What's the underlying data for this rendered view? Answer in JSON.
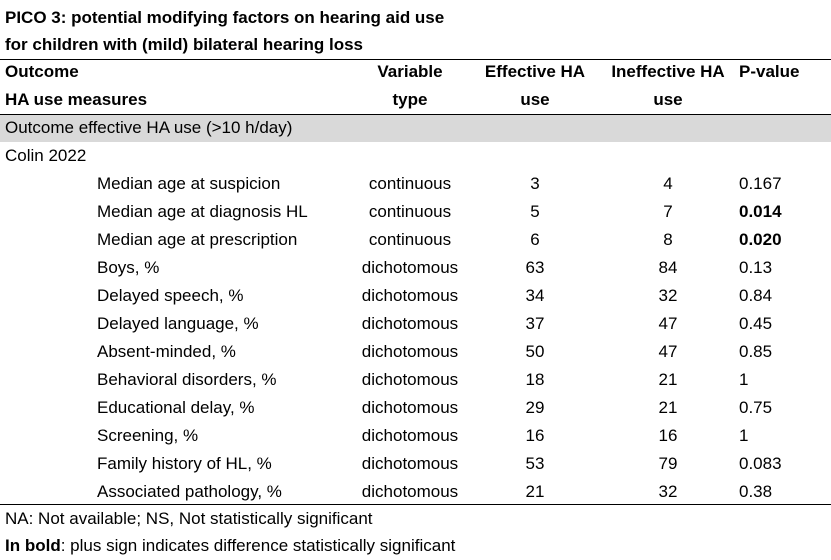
{
  "title": {
    "line1": "PICO 3: potential modifying factors on hearing aid use",
    "line2": "for children with (mild) bilateral hearing loss"
  },
  "header": {
    "outcome_l1": "Outcome",
    "outcome_l2": "HA use measures",
    "variable_l1": "Variable",
    "variable_l2": "type",
    "effective_l1": "Effective HA",
    "effective_l2": "use",
    "ineffective_l1": "Ineffective HA",
    "ineffective_l2": "use",
    "pvalue": "P-value"
  },
  "section": "Outcome effective HA use (>10 h/day)",
  "study": "Colin 2022",
  "rows": [
    {
      "label": "Median age at suspicion",
      "type": "continuous",
      "effective": "3",
      "ineffective": "4",
      "p": "0.167",
      "bold": false
    },
    {
      "label": "Median age at diagnosis HL",
      "type": "continuous",
      "effective": "5",
      "ineffective": "7",
      "p": "0.014",
      "bold": true
    },
    {
      "label": "Median age at prescription",
      "type": "continuous",
      "effective": "6",
      "ineffective": "8",
      "p": "0.020",
      "bold": true
    },
    {
      "label": "Boys, %",
      "type": "dichotomous",
      "effective": "63",
      "ineffective": "84",
      "p": "0.13",
      "bold": false
    },
    {
      "label": "Delayed speech, %",
      "type": "dichotomous",
      "effective": "34",
      "ineffective": "32",
      "p": "0.84",
      "bold": false
    },
    {
      "label": "Delayed language, %",
      "type": "dichotomous",
      "effective": "37",
      "ineffective": "47",
      "p": "0.45",
      "bold": false
    },
    {
      "label": "Absent-minded, %",
      "type": "dichotomous",
      "effective": "50",
      "ineffective": "47",
      "p": "0.85",
      "bold": false
    },
    {
      "label": "Behavioral disorders, %",
      "type": "dichotomous",
      "effective": "18",
      "ineffective": "21",
      "p": "1",
      "bold": false
    },
    {
      "label": "Educational delay, %",
      "type": "dichotomous",
      "effective": "29",
      "ineffective": "21",
      "p": "0.75",
      "bold": false
    },
    {
      "label": "Screening, %",
      "type": "dichotomous",
      "effective": "16",
      "ineffective": "16",
      "p": "1",
      "bold": false
    },
    {
      "label": "Family history of HL, %",
      "type": "dichotomous",
      "effective": "53",
      "ineffective": "79",
      "p": "0.083",
      "bold": false
    },
    {
      "label": "Associated pathology, %",
      "type": "dichotomous",
      "effective": "21",
      "ineffective": "32",
      "p": "0.38",
      "bold": false
    }
  ],
  "footnotes": {
    "line1": "NA: Not available; NS, Not statistically significant",
    "line2_bold": "In bold",
    "line2_rest": ": plus sign indicates difference statistically significant"
  },
  "colors": {
    "section_band": "#d9d9d9",
    "text": "#000000"
  }
}
